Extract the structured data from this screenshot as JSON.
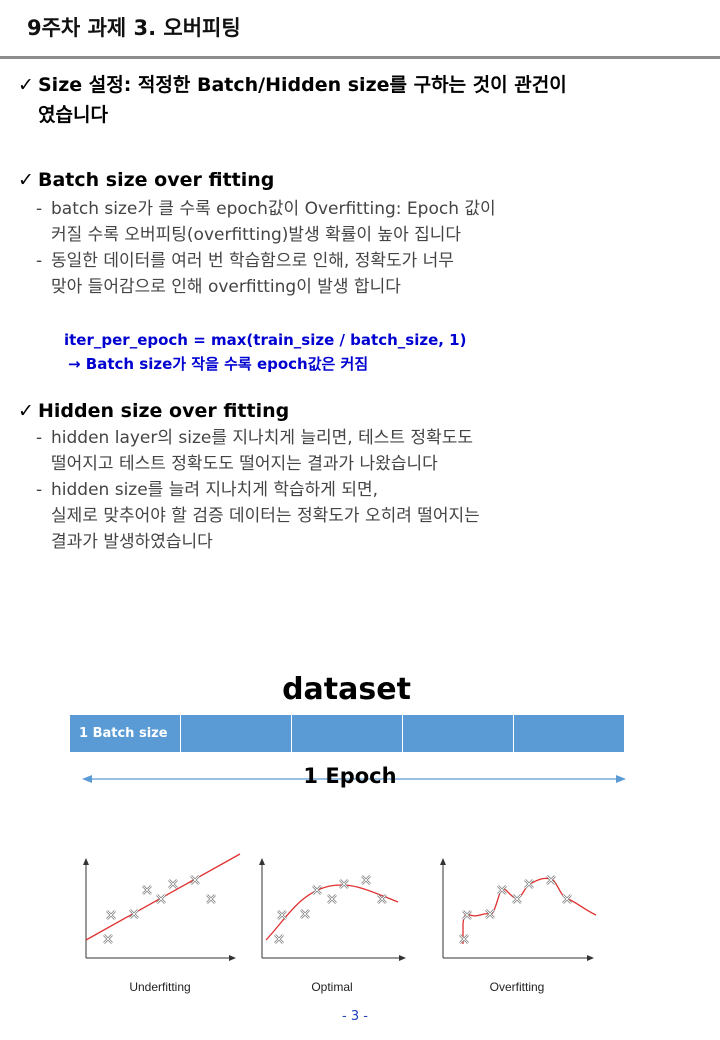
{
  "title": "9주차 과제 3. 오버피팅",
  "sections": [
    {
      "check": "✓",
      "heading_lines": [
        "Size 설정: 적정한 Batch/Hidden  size를 구하는 것이 관건이",
        "였습니다"
      ]
    },
    {
      "check": "✓",
      "heading": "Batch  size over fitting",
      "bullets": [
        {
          "dash": "-",
          "lines": [
            "batch size가 클 수록 epoch값이 Overfitting: Epoch 값이",
            "커질 수록 오버피팅(overfitting)발생 확률이 높아 집니다"
          ]
        },
        {
          "dash": "-",
          "lines": [
            "동일한 데이터를 여러 번 학습함으로 인해, 정확도가 너무",
            "맞아 들어감으로 인해 overfitting이 발생 합니다"
          ]
        }
      ],
      "code_line1": "iter_per_epoch = max(train_size / batch_size, 1)",
      "code_line2": "→ Batch size가 작을 수록 epoch값은 커짐"
    },
    {
      "check": "✓",
      "heading": "Hidden size over fitting",
      "bullets": [
        {
          "dash": "-",
          "lines": [
            "hidden layer의 size를 지나치게 늘리면, 테스트 정확도도",
            "떨어지고 테스트 정확도도 떨어지는 결과가 나왔습니다"
          ]
        },
        {
          "dash": "-",
          "lines": [
            "hidden size를 늘려 지나치게 학습하게 되면,",
            "실제로 맞추어야 할 검증 데이터는 정확도가 오히려 떨어지는",
            "결과가 발생하였습니다"
          ]
        }
      ]
    }
  ],
  "diagram": {
    "dataset_label": "dataset",
    "batch_cells": [
      "1 Batch size",
      "",
      "",
      "",
      ""
    ],
    "epoch_label": "1 Epoch",
    "bar_color": "#5b9bd5",
    "arrow_color": "#5b9bd5"
  },
  "fits": {
    "labels": [
      "Underfitting",
      "Optimal",
      "Overfitting"
    ],
    "curve_color": "#e03030",
    "marker": "x-marker-icon"
  },
  "page_number": "- 3 -"
}
